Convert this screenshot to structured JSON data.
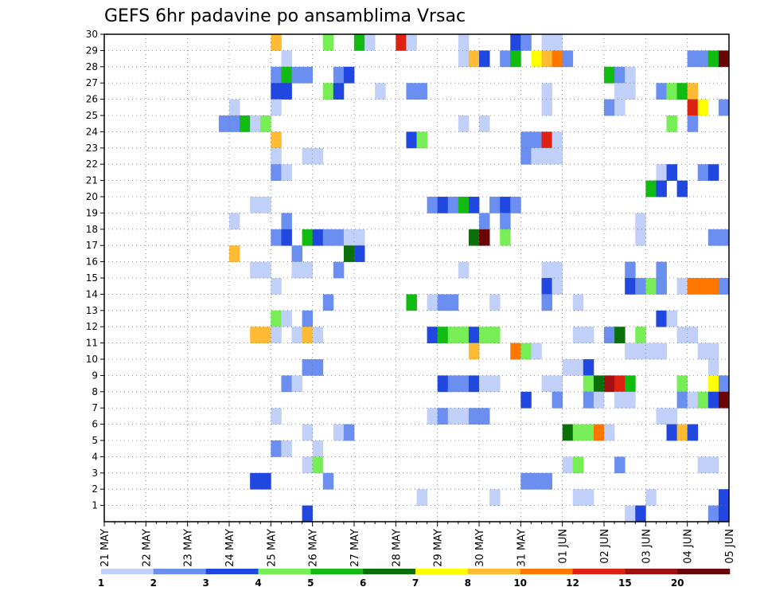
{
  "chart_data": {
    "type": "heatmap",
    "title": "GEFS 6hr padavine po ansamblima Vrsac",
    "x_tick_labels": [
      "21 MAY",
      "22 MAY",
      "23 MAY",
      "24 MAY",
      "25 MAY",
      "26 MAY",
      "27 MAY",
      "28 MAY",
      "29 MAY",
      "30 MAY",
      "31 MAY",
      "01 JUN",
      "02 JUN",
      "03 JUN",
      "04 JUN",
      "05 JUN"
    ],
    "y_tick_labels": [
      "1",
      "2",
      "3",
      "4",
      "5",
      "6",
      "7",
      "8",
      "9",
      "10",
      "11",
      "12",
      "13",
      "14",
      "15",
      "16",
      "17",
      "18",
      "19",
      "20",
      "21",
      "22",
      "23",
      "24",
      "25",
      "26",
      "27",
      "28",
      "29",
      "30"
    ],
    "xlim": [
      0,
      15
    ],
    "ylim": [
      0,
      30
    ],
    "steps_per_day": 4,
    "grid": true,
    "colorbar": {
      "colors": [
        "#c0d0f8",
        "#6b8ff0",
        "#2048e0",
        "#77ee55",
        "#11bb11",
        "#0a700a",
        "#ffff00",
        "#ffbb33",
        "#ff7700",
        "#dd2211",
        "#a01010",
        "#6a0505"
      ],
      "boundaries": [
        1,
        2,
        3,
        4,
        5,
        6,
        7,
        8,
        10,
        12,
        15,
        20
      ],
      "labels": [
        "1",
        "2",
        "3",
        "4",
        "5",
        "6",
        "7",
        "8",
        "10",
        "12",
        "15",
        "20"
      ]
    },
    "series_note_legend": "cells: [member, step, category]",
    "cells": [
      [
        30,
        16,
        8
      ],
      [
        30,
        21,
        4
      ],
      [
        30,
        24,
        5
      ],
      [
        30,
        25,
        1
      ],
      [
        30,
        28,
        10
      ],
      [
        30,
        29,
        1
      ],
      [
        30,
        34,
        1
      ],
      [
        30,
        39,
        3
      ],
      [
        30,
        40,
        2
      ],
      [
        30,
        42,
        1
      ],
      [
        30,
        43,
        1
      ],
      [
        29,
        17,
        1
      ],
      [
        29,
        34,
        1
      ],
      [
        29,
        35,
        8
      ],
      [
        29,
        36,
        3
      ],
      [
        29,
        38,
        2
      ],
      [
        29,
        39,
        5
      ],
      [
        29,
        41,
        7
      ],
      [
        29,
        42,
        8
      ],
      [
        29,
        43,
        9
      ],
      [
        29,
        44,
        2
      ],
      [
        29,
        56,
        2
      ],
      [
        29,
        57,
        2
      ],
      [
        29,
        58,
        5
      ],
      [
        29,
        59,
        12
      ],
      [
        28,
        16,
        2
      ],
      [
        28,
        17,
        5
      ],
      [
        28,
        18,
        2
      ],
      [
        28,
        19,
        2
      ],
      [
        28,
        22,
        2
      ],
      [
        28,
        23,
        3
      ],
      [
        28,
        48,
        5
      ],
      [
        28,
        49,
        2
      ],
      [
        28,
        50,
        1
      ],
      [
        27,
        16,
        3
      ],
      [
        27,
        17,
        3
      ],
      [
        27,
        21,
        4
      ],
      [
        27,
        22,
        3
      ],
      [
        27,
        26,
        1
      ],
      [
        27,
        29,
        2
      ],
      [
        27,
        30,
        2
      ],
      [
        27,
        42,
        1
      ],
      [
        27,
        49,
        1
      ],
      [
        27,
        50,
        1
      ],
      [
        27,
        53,
        2
      ],
      [
        27,
        54,
        4
      ],
      [
        27,
        55,
        5
      ],
      [
        27,
        56,
        8
      ],
      [
        26,
        12,
        1
      ],
      [
        26,
        16,
        1
      ],
      [
        26,
        42,
        1
      ],
      [
        26,
        48,
        2
      ],
      [
        26,
        49,
        1
      ],
      [
        26,
        56,
        10
      ],
      [
        26,
        57,
        7
      ],
      [
        26,
        59,
        2
      ],
      [
        25,
        11,
        2
      ],
      [
        25,
        12,
        2
      ],
      [
        25,
        13,
        5
      ],
      [
        25,
        14,
        1
      ],
      [
        25,
        15,
        4
      ],
      [
        25,
        34,
        1
      ],
      [
        25,
        36,
        1
      ],
      [
        25,
        54,
        4
      ],
      [
        25,
        56,
        2
      ],
      [
        24,
        16,
        8
      ],
      [
        24,
        29,
        3
      ],
      [
        24,
        30,
        4
      ],
      [
        24,
        40,
        2
      ],
      [
        24,
        41,
        2
      ],
      [
        24,
        42,
        10
      ],
      [
        24,
        43,
        1
      ],
      [
        23,
        16,
        1
      ],
      [
        23,
        19,
        1
      ],
      [
        23,
        20,
        1
      ],
      [
        23,
        40,
        2
      ],
      [
        23,
        41,
        1
      ],
      [
        23,
        42,
        1
      ],
      [
        23,
        43,
        1
      ],
      [
        22,
        16,
        2
      ],
      [
        22,
        17,
        1
      ],
      [
        22,
        53,
        1
      ],
      [
        22,
        54,
        3
      ],
      [
        22,
        57,
        2
      ],
      [
        22,
        58,
        3
      ],
      [
        21,
        52,
        5
      ],
      [
        21,
        53,
        3
      ],
      [
        21,
        55,
        3
      ],
      [
        20,
        14,
        1
      ],
      [
        20,
        15,
        1
      ],
      [
        20,
        31,
        2
      ],
      [
        20,
        32,
        3
      ],
      [
        20,
        33,
        2
      ],
      [
        20,
        34,
        5
      ],
      [
        20,
        35,
        3
      ],
      [
        20,
        37,
        2
      ],
      [
        20,
        38,
        3
      ],
      [
        20,
        39,
        2
      ],
      [
        19,
        12,
        1
      ],
      [
        19,
        17,
        2
      ],
      [
        19,
        36,
        2
      ],
      [
        19,
        38,
        2
      ],
      [
        19,
        51,
        1
      ],
      [
        18,
        16,
        2
      ],
      [
        18,
        17,
        3
      ],
      [
        18,
        19,
        5
      ],
      [
        18,
        20,
        3
      ],
      [
        18,
        21,
        2
      ],
      [
        18,
        22,
        2
      ],
      [
        18,
        23,
        1
      ],
      [
        18,
        24,
        1
      ],
      [
        18,
        35,
        6
      ],
      [
        18,
        36,
        12
      ],
      [
        18,
        38,
        4
      ],
      [
        18,
        51,
        1
      ],
      [
        18,
        58,
        2
      ],
      [
        18,
        59,
        2
      ],
      [
        17,
        12,
        8
      ],
      [
        17,
        18,
        2
      ],
      [
        17,
        23,
        6
      ],
      [
        17,
        24,
        3
      ],
      [
        16,
        14,
        1
      ],
      [
        16,
        15,
        1
      ],
      [
        16,
        18,
        1
      ],
      [
        16,
        19,
        1
      ],
      [
        16,
        22,
        2
      ],
      [
        16,
        34,
        1
      ],
      [
        16,
        42,
        1
      ],
      [
        16,
        43,
        1
      ],
      [
        16,
        50,
        2
      ],
      [
        16,
        53,
        2
      ],
      [
        15,
        16,
        1
      ],
      [
        15,
        42,
        3
      ],
      [
        15,
        43,
        1
      ],
      [
        15,
        50,
        3
      ],
      [
        15,
        51,
        2
      ],
      [
        15,
        52,
        4
      ],
      [
        15,
        53,
        2
      ],
      [
        15,
        55,
        1
      ],
      [
        15,
        56,
        9
      ],
      [
        15,
        57,
        9
      ],
      [
        15,
        58,
        9
      ],
      [
        15,
        59,
        2
      ],
      [
        14,
        21,
        2
      ],
      [
        14,
        29,
        5
      ],
      [
        14,
        31,
        1
      ],
      [
        14,
        32,
        2
      ],
      [
        14,
        33,
        2
      ],
      [
        14,
        37,
        1
      ],
      [
        14,
        42,
        2
      ],
      [
        14,
        45,
        1
      ],
      [
        13,
        16,
        4
      ],
      [
        13,
        17,
        1
      ],
      [
        13,
        19,
        2
      ],
      [
        13,
        53,
        3
      ],
      [
        13,
        54,
        1
      ],
      [
        12,
        14,
        8
      ],
      [
        12,
        15,
        8
      ],
      [
        12,
        16,
        1
      ],
      [
        12,
        18,
        1
      ],
      [
        12,
        19,
        8
      ],
      [
        12,
        20,
        1
      ],
      [
        12,
        31,
        3
      ],
      [
        12,
        32,
        5
      ],
      [
        12,
        33,
        4
      ],
      [
        12,
        34,
        4
      ],
      [
        12,
        35,
        3
      ],
      [
        12,
        36,
        4
      ],
      [
        12,
        37,
        4
      ],
      [
        12,
        45,
        1
      ],
      [
        12,
        46,
        1
      ],
      [
        12,
        48,
        2
      ],
      [
        12,
        49,
        6
      ],
      [
        12,
        51,
        4
      ],
      [
        12,
        55,
        1
      ],
      [
        12,
        56,
        1
      ],
      [
        11,
        35,
        8
      ],
      [
        11,
        39,
        9
      ],
      [
        11,
        40,
        4
      ],
      [
        11,
        41,
        1
      ],
      [
        11,
        50,
        1
      ],
      [
        11,
        51,
        1
      ],
      [
        11,
        52,
        1
      ],
      [
        11,
        53,
        1
      ],
      [
        11,
        57,
        1
      ],
      [
        11,
        58,
        1
      ],
      [
        10,
        19,
        2
      ],
      [
        10,
        20,
        2
      ],
      [
        10,
        44,
        1
      ],
      [
        10,
        45,
        1
      ],
      [
        10,
        46,
        3
      ],
      [
        10,
        58,
        1
      ],
      [
        9,
        17,
        2
      ],
      [
        9,
        18,
        1
      ],
      [
        9,
        32,
        3
      ],
      [
        9,
        33,
        2
      ],
      [
        9,
        34,
        2
      ],
      [
        9,
        35,
        3
      ],
      [
        9,
        36,
        1
      ],
      [
        9,
        37,
        1
      ],
      [
        9,
        42,
        1
      ],
      [
        9,
        43,
        1
      ],
      [
        9,
        46,
        4
      ],
      [
        9,
        47,
        6
      ],
      [
        9,
        48,
        11
      ],
      [
        9,
        49,
        10
      ],
      [
        9,
        50,
        5
      ],
      [
        9,
        55,
        4
      ],
      [
        9,
        58,
        7
      ],
      [
        9,
        59,
        2
      ],
      [
        8,
        40,
        3
      ],
      [
        8,
        43,
        2
      ],
      [
        8,
        46,
        2
      ],
      [
        8,
        47,
        1
      ],
      [
        8,
        49,
        1
      ],
      [
        8,
        50,
        1
      ],
      [
        8,
        55,
        2
      ],
      [
        8,
        56,
        1
      ],
      [
        8,
        57,
        4
      ],
      [
        8,
        58,
        3
      ],
      [
        8,
        59,
        12
      ],
      [
        7,
        16,
        1
      ],
      [
        7,
        31,
        1
      ],
      [
        7,
        32,
        2
      ],
      [
        7,
        33,
        1
      ],
      [
        7,
        34,
        1
      ],
      [
        7,
        35,
        2
      ],
      [
        7,
        36,
        2
      ],
      [
        7,
        53,
        1
      ],
      [
        7,
        54,
        1
      ],
      [
        6,
        19,
        1
      ],
      [
        6,
        22,
        1
      ],
      [
        6,
        23,
        2
      ],
      [
        6,
        44,
        6
      ],
      [
        6,
        45,
        4
      ],
      [
        6,
        46,
        4
      ],
      [
        6,
        47,
        9
      ],
      [
        6,
        48,
        1
      ],
      [
        6,
        54,
        3
      ],
      [
        6,
        55,
        8
      ],
      [
        6,
        56,
        3
      ],
      [
        5,
        16,
        2
      ],
      [
        5,
        17,
        1
      ],
      [
        5,
        20,
        1
      ],
      [
        4,
        19,
        1
      ],
      [
        4,
        20,
        4
      ],
      [
        4,
        44,
        1
      ],
      [
        4,
        45,
        4
      ],
      [
        4,
        49,
        2
      ],
      [
        4,
        57,
        1
      ],
      [
        4,
        58,
        1
      ],
      [
        3,
        14,
        3
      ],
      [
        3,
        15,
        3
      ],
      [
        3,
        21,
        2
      ],
      [
        3,
        40,
        2
      ],
      [
        3,
        41,
        2
      ],
      [
        3,
        42,
        2
      ],
      [
        2,
        30,
        1
      ],
      [
        2,
        37,
        1
      ],
      [
        2,
        45,
        1
      ],
      [
        2,
        46,
        1
      ],
      [
        2,
        52,
        1
      ],
      [
        2,
        59,
        3
      ],
      [
        1,
        19,
        3
      ],
      [
        1,
        50,
        1
      ],
      [
        1,
        51,
        3
      ],
      [
        1,
        58,
        2
      ],
      [
        1,
        59,
        3
      ]
    ]
  }
}
